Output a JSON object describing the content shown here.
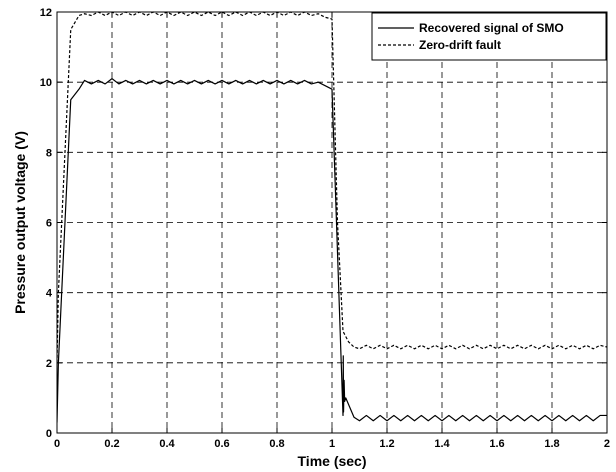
{
  "chart_data": {
    "type": "line",
    "title": "",
    "xlabel": "Time (sec)",
    "ylabel": "Pressure output voltage (V)",
    "xlim": [
      0,
      2
    ],
    "ylim": [
      0,
      12
    ],
    "xticks": [
      0,
      0.2,
      0.4,
      0.6,
      0.8,
      1,
      1.2,
      1.4,
      1.6,
      1.8,
      2
    ],
    "xtick_labels": [
      "0",
      "0.2",
      "0.4",
      "0.6",
      "0.8",
      "1",
      "1.2",
      "1.4",
      "1.6",
      "1.8",
      "2"
    ],
    "yticks": [
      0,
      2,
      4,
      6,
      8,
      10,
      12
    ],
    "ytick_labels": [
      "0",
      "2",
      "4",
      "6",
      "8",
      "10",
      "12"
    ],
    "grid": true,
    "legend_position": "top-right",
    "series": [
      {
        "name": "Recovered signal of SMO",
        "style": "solid",
        "color": "#000000",
        "x": [
          0,
          0.005,
          0.05,
          0.08,
          0.1,
          0.125,
          0.15,
          0.175,
          0.2,
          0.225,
          0.25,
          0.275,
          0.3,
          0.325,
          0.35,
          0.375,
          0.4,
          0.425,
          0.45,
          0.475,
          0.5,
          0.525,
          0.55,
          0.575,
          0.6,
          0.625,
          0.65,
          0.675,
          0.7,
          0.725,
          0.75,
          0.775,
          0.8,
          0.825,
          0.85,
          0.875,
          0.9,
          0.925,
          0.95,
          0.975,
          1.0,
          1.04,
          1.041,
          1.042,
          1.044,
          1.046,
          1.05,
          1.08,
          1.1,
          1.125,
          1.15,
          1.175,
          1.2,
          1.225,
          1.25,
          1.275,
          1.3,
          1.325,
          1.35,
          1.375,
          1.4,
          1.425,
          1.45,
          1.475,
          1.5,
          1.525,
          1.55,
          1.575,
          1.6,
          1.625,
          1.65,
          1.675,
          1.7,
          1.725,
          1.75,
          1.775,
          1.8,
          1.825,
          1.85,
          1.875,
          1.9,
          1.925,
          1.95,
          1.975,
          2.0
        ],
        "y": [
          0.3,
          2.0,
          9.5,
          9.8,
          10.05,
          9.95,
          10.05,
          9.95,
          10.1,
          9.95,
          10.05,
          9.95,
          10.05,
          9.95,
          10.05,
          9.95,
          10.05,
          9.95,
          10.05,
          9.95,
          10.05,
          9.95,
          10.05,
          9.95,
          10.05,
          9.95,
          10.05,
          9.95,
          10.05,
          9.95,
          10.05,
          9.95,
          10.05,
          9.95,
          10.05,
          9.95,
          10.05,
          9.95,
          10.0,
          9.9,
          9.8,
          0.5,
          2.2,
          0.6,
          1.5,
          0.9,
          1.0,
          0.45,
          0.35,
          0.5,
          0.35,
          0.5,
          0.35,
          0.5,
          0.35,
          0.5,
          0.35,
          0.5,
          0.35,
          0.5,
          0.35,
          0.5,
          0.35,
          0.5,
          0.35,
          0.5,
          0.35,
          0.5,
          0.35,
          0.5,
          0.35,
          0.5,
          0.35,
          0.5,
          0.35,
          0.5,
          0.35,
          0.5,
          0.35,
          0.5,
          0.35,
          0.5,
          0.35,
          0.5,
          0.5
        ]
      },
      {
        "name": "Zero-drift fault",
        "style": "dashed",
        "color": "#000000",
        "x": [
          0,
          0.005,
          0.05,
          0.08,
          0.1,
          0.125,
          0.15,
          0.175,
          0.2,
          0.225,
          0.25,
          0.275,
          0.3,
          0.325,
          0.35,
          0.375,
          0.4,
          0.425,
          0.45,
          0.475,
          0.5,
          0.525,
          0.55,
          0.575,
          0.6,
          0.625,
          0.65,
          0.675,
          0.7,
          0.725,
          0.75,
          0.775,
          0.8,
          0.825,
          0.85,
          0.875,
          0.9,
          0.925,
          0.95,
          0.975,
          1.0,
          1.02,
          1.04,
          1.06,
          1.08,
          1.1,
          1.125,
          1.15,
          1.175,
          1.2,
          1.225,
          1.25,
          1.275,
          1.3,
          1.325,
          1.35,
          1.375,
          1.4,
          1.425,
          1.45,
          1.475,
          1.5,
          1.525,
          1.55,
          1.575,
          1.6,
          1.625,
          1.65,
          1.675,
          1.7,
          1.725,
          1.75,
          1.775,
          1.8,
          1.825,
          1.85,
          1.875,
          1.9,
          1.925,
          1.95,
          1.975,
          2.0
        ],
        "y": [
          2.0,
          4.0,
          11.5,
          11.9,
          11.95,
          11.9,
          12.0,
          11.9,
          12.0,
          11.9,
          12.0,
          11.9,
          12.0,
          11.9,
          12.0,
          11.9,
          12.0,
          11.9,
          12.0,
          11.9,
          12.0,
          11.9,
          12.0,
          11.9,
          12.0,
          11.9,
          12.0,
          11.9,
          12.0,
          11.9,
          12.0,
          11.9,
          12.0,
          11.9,
          12.0,
          11.9,
          12.0,
          11.9,
          11.95,
          11.85,
          11.8,
          6.0,
          2.9,
          2.6,
          2.45,
          2.4,
          2.5,
          2.4,
          2.5,
          2.4,
          2.5,
          2.4,
          2.5,
          2.4,
          2.5,
          2.4,
          2.5,
          2.4,
          2.5,
          2.4,
          2.5,
          2.4,
          2.5,
          2.4,
          2.5,
          2.4,
          2.5,
          2.4,
          2.5,
          2.4,
          2.5,
          2.4,
          2.5,
          2.4,
          2.5,
          2.4,
          2.5,
          2.4,
          2.5,
          2.4,
          2.5,
          2.45
        ]
      }
    ]
  }
}
